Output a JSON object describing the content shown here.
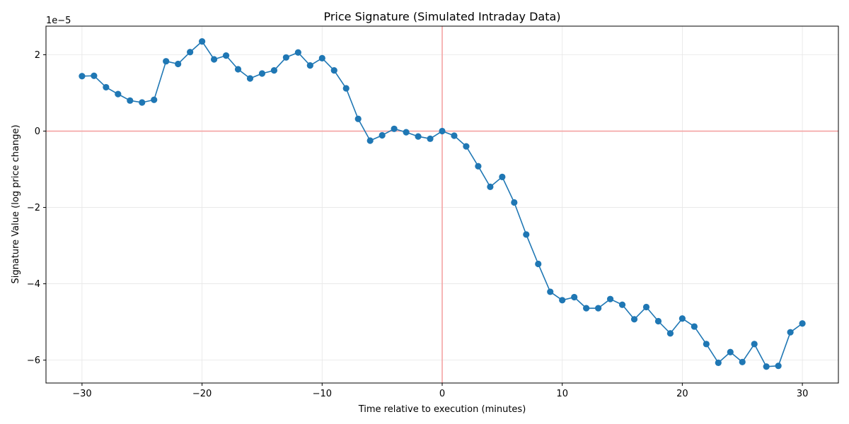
{
  "chart_data": {
    "type": "line",
    "title": "Price Signature (Simulated Intraday Data)",
    "xlabel": "Time relative to execution (minutes)",
    "ylabel": "Signature Value (log price change)",
    "y_offset_text": "1e−5",
    "y_scale_exponent": -5,
    "xlim": [
      -33,
      33
    ],
    "ylim": [
      -6.6,
      2.75
    ],
    "x_ticks": [
      -30,
      -20,
      -10,
      0,
      10,
      20,
      30
    ],
    "x_tick_labels": [
      "−30",
      "−20",
      "−10",
      "0",
      "10",
      "20",
      "30"
    ],
    "y_ticks": [
      -6,
      -4,
      -2,
      0,
      2
    ],
    "y_tick_labels": [
      "−6",
      "−4",
      "−2",
      "0",
      "2"
    ],
    "grid": true,
    "reference_lines": {
      "x": 0,
      "y": 0,
      "color": "#f4a3a3"
    },
    "series": [
      {
        "color": "#1f77b4",
        "marker": "circle",
        "x": [
          -30,
          -29,
          -28,
          -27,
          -26,
          -25,
          -24,
          -23,
          -22,
          -21,
          -20,
          -19,
          -18,
          -17,
          -16,
          -15,
          -14,
          -13,
          -12,
          -11,
          -10,
          -9,
          -8,
          -7,
          -6,
          -5,
          -4,
          -3,
          -2,
          -1,
          0,
          1,
          2,
          3,
          4,
          5,
          6,
          7,
          8,
          9,
          10,
          11,
          12,
          13,
          14,
          15,
          16,
          17,
          18,
          19,
          20,
          21,
          22,
          23,
          24,
          25,
          26,
          27,
          28,
          29,
          30
        ],
        "y": [
          1.44,
          1.45,
          1.15,
          0.97,
          0.8,
          0.75,
          0.82,
          1.83,
          1.76,
          2.07,
          2.35,
          1.88,
          1.98,
          1.62,
          1.38,
          1.51,
          1.59,
          1.93,
          2.06,
          1.72,
          1.91,
          1.59,
          1.12,
          0.32,
          -0.25,
          -0.11,
          0.06,
          -0.03,
          -0.14,
          -0.2,
          0.0,
          -0.12,
          -0.4,
          -0.92,
          -1.46,
          -1.2,
          -1.87,
          -2.71,
          -3.48,
          -4.21,
          -4.43,
          -4.35,
          -4.64,
          -4.64,
          -4.4,
          -4.55,
          -4.93,
          -4.61,
          -4.98,
          -5.3,
          -4.91,
          -5.12,
          -5.58,
          -6.07,
          -5.79,
          -6.05,
          -5.58,
          -6.17,
          -6.15,
          -5.27,
          -5.04
        ]
      }
    ]
  }
}
